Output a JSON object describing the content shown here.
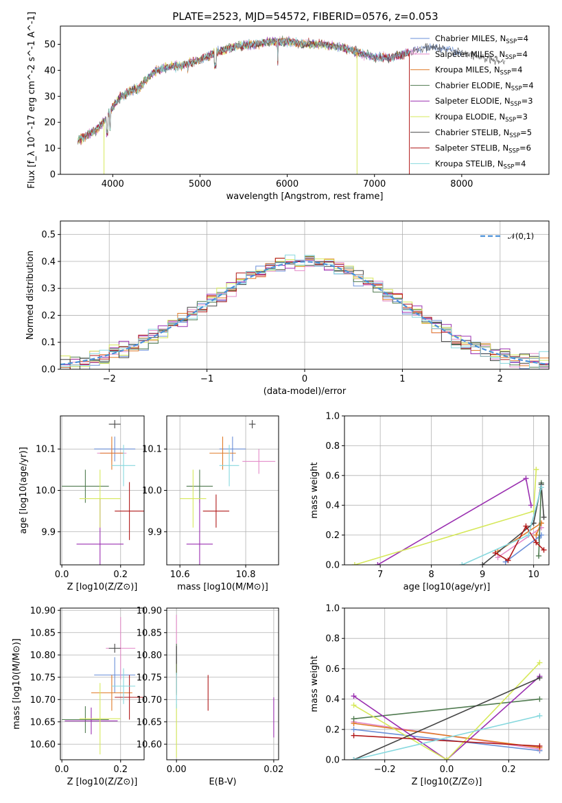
{
  "figure_title": "PLATE=2523, MJD=54572, FIBERID=0576, z=0.053",
  "colors": {
    "Chabrier MILES": "#6a8fd8",
    "Salpeter MILES": "#e38ac8",
    "Kroupa MILES": "#e07b28",
    "Chabrier ELODIE": "#4f7a4f",
    "Salpeter ELODIE": "#9a2fb0",
    "Kroupa ELODIE": "#d6e85a",
    "Chabrier STELIB": "#444444",
    "Salpeter STELIB": "#b01818",
    "Kroupa STELIB": "#86d8de"
  },
  "chart_data": [
    {
      "id": "spectrum",
      "type": "line",
      "title": "PLATE=2523, MJD=54572, FIBERID=0576, z=0.053",
      "xlabel": "wavelength [Angstrom, rest frame]",
      "ylabel": "Flux [f_λ 10^-17 erg cm^-2 s^-1 A^-1]",
      "xlim": [
        3400,
        9000
      ],
      "ylim": [
        0,
        57
      ],
      "xticks": [
        4000,
        5000,
        6000,
        7000,
        8000
      ],
      "yticks": [
        0,
        10,
        20,
        30,
        40,
        50
      ],
      "legend_position": "right",
      "legend": [
        {
          "name": "Chabrier MILES",
          "nssp": "4"
        },
        {
          "name": "Salpeter MILES",
          "nssp": "4"
        },
        {
          "name": "Kroupa MILES",
          "nssp": "4"
        },
        {
          "name": "Chabrier ELODIE",
          "nssp": "4"
        },
        {
          "name": "Salpeter ELODIE",
          "nssp": "3"
        },
        {
          "name": "Kroupa ELODIE",
          "nssp": "3"
        },
        {
          "name": "Chabrier STELIB",
          "nssp": "5"
        },
        {
          "name": "Salpeter STELIB",
          "nssp": "6"
        },
        {
          "name": "Kroupa STELIB",
          "nssp": "4"
        }
      ],
      "continuum": {
        "x": [
          3600,
          3700,
          3800,
          3900,
          4000,
          4100,
          4200,
          4300,
          4400,
          4500,
          4600,
          4800,
          5000,
          5200,
          5400,
          5600,
          5800,
          6000,
          6200,
          6400,
          6600,
          6800,
          7000,
          7200,
          7400,
          7600,
          7800,
          8000,
          8200,
          8400,
          8600,
          8800,
          9000
        ],
        "y": [
          13,
          15,
          17,
          20,
          26,
          30,
          32,
          33,
          37,
          40,
          41,
          42,
          44,
          47,
          49,
          50,
          51,
          51,
          50,
          50,
          49,
          47,
          45,
          45,
          47,
          49,
          48,
          47,
          45,
          44,
          43,
          42,
          41
        ]
      },
      "series": [
        {
          "name": "Chabrier MILES",
          "x": [
            3600,
            8000
          ]
        },
        {
          "name": "Salpeter MILES",
          "x": [
            3600,
            7500
          ]
        },
        {
          "name": "Kroupa MILES",
          "x": [
            3600,
            7400
          ]
        },
        {
          "name": "Chabrier ELODIE",
          "x": [
            3600,
            7400
          ]
        },
        {
          "name": "Salpeter ELODIE",
          "x": [
            3600,
            7400
          ]
        },
        {
          "name": "Kroupa ELODIE",
          "x": [
            3600,
            6800
          ]
        },
        {
          "name": "Chabrier STELIB",
          "x": [
            3600,
            8500
          ]
        },
        {
          "name": "Salpeter STELIB",
          "x": [
            3600,
            7400
          ]
        },
        {
          "name": "Kroupa STELIB",
          "x": [
            3600,
            7400
          ]
        }
      ]
    },
    {
      "id": "residuals",
      "type": "step",
      "xlabel": "(data-model)/error",
      "ylabel": "Normed distribution",
      "xlim": [
        -2.5,
        2.5
      ],
      "ylim": [
        0,
        0.55
      ],
      "xticks": [
        -2,
        -1,
        0,
        1,
        2
      ],
      "yticks": [
        0.0,
        0.1,
        0.2,
        0.3,
        0.4,
        0.5
      ],
      "legend": "𝒩(0,1)",
      "legend_position": "top-right",
      "bin_width": 0.1
    },
    {
      "id": "age_vs_Z",
      "type": "errorbar",
      "xlabel": "Z [log10(Z/Z⊙)]",
      "ylabel": "age [log10(age/yr)]",
      "xlim": [
        -0.005,
        0.28
      ],
      "ylim": [
        9.82,
        10.18
      ],
      "xticks": [
        0.0,
        0.2
      ],
      "yticks": [
        9.9,
        10.0,
        10.1
      ],
      "points": [
        {
          "name": "Chabrier MILES",
          "x": 0.18,
          "y": 10.1,
          "xerr": 0.07,
          "yerr": 0.03
        },
        {
          "name": "Salpeter MILES",
          "x": 0.17,
          "y": 10.09,
          "xerr": 0.05,
          "yerr": 0.02
        },
        {
          "name": "Kroupa MILES",
          "x": 0.17,
          "y": 10.09,
          "xerr": 0.04,
          "yerr": 0.04
        },
        {
          "name": "Chabrier ELODIE",
          "x": 0.08,
          "y": 10.01,
          "xerr": 0.08,
          "yerr": 0.04
        },
        {
          "name": "Salpeter ELODIE",
          "x": 0.13,
          "y": 9.87,
          "xerr": 0.08,
          "yerr": 0.11
        },
        {
          "name": "Kroupa ELODIE",
          "x": 0.13,
          "y": 9.98,
          "xerr": 0.07,
          "yerr": 0.07
        },
        {
          "name": "Chabrier STELIB",
          "x": 0.18,
          "y": 10.16,
          "xerr": 0.02,
          "yerr": 0.01
        },
        {
          "name": "Salpeter STELIB",
          "x": 0.23,
          "y": 9.95,
          "xerr": 0.05,
          "yerr": 0.07
        },
        {
          "name": "Kroupa STELIB",
          "x": 0.21,
          "y": 10.06,
          "xerr": 0.04,
          "yerr": 0.05
        }
      ]
    },
    {
      "id": "age_vs_mass",
      "type": "errorbar",
      "xlabel": "mass [log10(M/M⊙)]",
      "ylabel": "",
      "xlim": [
        10.56,
        10.9
      ],
      "ylim": [
        9.82,
        10.18
      ],
      "xticks": [
        10.6,
        10.8
      ],
      "yticks": [
        9.9,
        10.0,
        10.1
      ],
      "points": [
        {
          "name": "Chabrier MILES",
          "x": 10.76,
          "y": 10.1,
          "xerr": 0.04,
          "yerr": 0.03
        },
        {
          "name": "Salpeter MILES",
          "x": 10.84,
          "y": 10.07,
          "xerr": 0.05,
          "yerr": 0.03
        },
        {
          "name": "Kroupa MILES",
          "x": 10.73,
          "y": 10.09,
          "xerr": 0.04,
          "yerr": 0.04
        },
        {
          "name": "Chabrier ELODIE",
          "x": 10.66,
          "y": 10.01,
          "xerr": 0.04,
          "yerr": 0.04
        },
        {
          "name": "Salpeter ELODIE",
          "x": 10.66,
          "y": 9.87,
          "xerr": 0.04,
          "yerr": 0.11
        },
        {
          "name": "Kroupa ELODIE",
          "x": 10.64,
          "y": 9.98,
          "xerr": 0.04,
          "yerr": 0.07
        },
        {
          "name": "Chabrier STELIB",
          "x": 10.82,
          "y": 10.16,
          "xerr": 0.01,
          "yerr": 0.01
        },
        {
          "name": "Salpeter STELIB",
          "x": 10.71,
          "y": 9.95,
          "xerr": 0.04,
          "yerr": 0.04
        },
        {
          "name": "Kroupa STELIB",
          "x": 10.75,
          "y": 10.06,
          "xerr": 0.03,
          "yerr": 0.05
        }
      ]
    },
    {
      "id": "weight_vs_age",
      "type": "line",
      "xlabel": "age [log10(age/yr)]",
      "ylabel": "mass weight",
      "xlim": [
        6.3,
        10.3
      ],
      "ylim": [
        0,
        1.0
      ],
      "xticks": [
        7,
        8,
        9,
        10
      ],
      "yticks": [
        0.0,
        0.2,
        0.4,
        0.6,
        0.8,
        1.0
      ],
      "series": [
        {
          "name": "Chabrier MILES",
          "x": [
            9.45,
            10.15,
            10.1
          ],
          "y": [
            0.02,
            0.2,
            0.18
          ]
        },
        {
          "name": "Salpeter MILES",
          "x": [
            9.3,
            10.15
          ],
          "y": [
            0.05,
            0.25
          ]
        },
        {
          "name": "Kroupa MILES",
          "x": [
            9.3,
            10.15,
            10.05
          ],
          "y": [
            0.09,
            0.28,
            0.2
          ]
        },
        {
          "name": "Chabrier ELODIE",
          "x": [
            10.1,
            10.15
          ],
          "y": [
            0.06,
            0.55
          ]
        },
        {
          "name": "Salpeter ELODIE",
          "x": [
            6.95,
            9.85,
            9.95
          ],
          "y": [
            0.0,
            0.58,
            0.4
          ]
        },
        {
          "name": "Kroupa ELODIE",
          "x": [
            6.5,
            10.0,
            10.05
          ],
          "y": [
            0.0,
            0.36,
            0.64
          ]
        },
        {
          "name": "Chabrier STELIB",
          "x": [
            9.0,
            10.0,
            10.15,
            10.2
          ],
          "y": [
            0.0,
            0.28,
            0.54,
            0.32
          ]
        },
        {
          "name": "Salpeter STELIB",
          "x": [
            9.25,
            9.5,
            9.85,
            10.05,
            10.2
          ],
          "y": [
            0.08,
            0.03,
            0.26,
            0.15,
            0.1
          ]
        },
        {
          "name": "Kroupa STELIB",
          "x": [
            8.6,
            9.9,
            10.15
          ],
          "y": [
            0.0,
            0.2,
            0.52
          ]
        }
      ]
    },
    {
      "id": "mass_vs_Z",
      "type": "errorbar",
      "xlabel": "Z [log10(Z/Z⊙)]",
      "ylabel": "mass [log10(M/M⊙)]",
      "xlim": [
        -0.005,
        0.28
      ],
      "ylim": [
        10.565,
        10.905
      ],
      "xticks": [
        0.0,
        0.2
      ],
      "yticks": [
        10.6,
        10.65,
        10.7,
        10.75,
        10.8,
        10.85,
        10.9
      ],
      "points": [
        {
          "name": "Chabrier MILES",
          "x": 0.18,
          "y": 10.755,
          "xerr": 0.07,
          "yerr": 0.04
        },
        {
          "name": "Salpeter MILES",
          "x": 0.2,
          "y": 10.815,
          "xerr": 0.05,
          "yerr": 0.07
        },
        {
          "name": "Kroupa MILES",
          "x": 0.17,
          "y": 10.715,
          "xerr": 0.07,
          "yerr": 0.04
        },
        {
          "name": "Chabrier ELODIE",
          "x": 0.08,
          "y": 10.655,
          "xerr": 0.08,
          "yerr": 0.03
        },
        {
          "name": "Salpeter ELODIE",
          "x": 0.1,
          "y": 10.652,
          "xerr": 0.09,
          "yerr": 0.03
        },
        {
          "name": "Kroupa ELODIE",
          "x": 0.13,
          "y": 10.657,
          "xerr": 0.07,
          "yerr": 0.08
        },
        {
          "name": "Chabrier STELIB",
          "x": 0.18,
          "y": 10.815,
          "xerr": 0.02,
          "yerr": 0.01
        },
        {
          "name": "Salpeter STELIB",
          "x": 0.23,
          "y": 10.705,
          "xerr": 0.05,
          "yerr": 0.05
        },
        {
          "name": "Kroupa STELIB",
          "x": 0.21,
          "y": 10.73,
          "xerr": 0.04,
          "yerr": 0.04
        }
      ]
    },
    {
      "id": "mass_vs_ebv",
      "type": "errorbar",
      "xlabel": "E(B-V)",
      "ylabel": "",
      "xlim": [
        -0.002,
        0.021
      ],
      "ylim": [
        10.565,
        10.905
      ],
      "xticks": [
        0.0,
        0.02
      ],
      "yticks": [
        10.6,
        10.65,
        10.7,
        10.75,
        10.8,
        10.85,
        10.9
      ],
      "points": [
        {
          "name": "Chabrier MILES",
          "x": 0.0,
          "y": 10.755,
          "xerr": 0.0,
          "yerr": 0.04
        },
        {
          "name": "Salpeter MILES",
          "x": 0.0,
          "y": 10.815,
          "xerr": 0.0,
          "yerr": 0.075
        },
        {
          "name": "Kroupa MILES",
          "x": 0.0,
          "y": 10.75,
          "xerr": 0.0,
          "yerr": 0.04
        },
        {
          "name": "Chabrier ELODIE",
          "x": 0.0,
          "y": 10.79,
          "xerr": 0.0,
          "yerr": 0.035
        },
        {
          "name": "Salpeter ELODIE",
          "x": 0.02,
          "y": 10.66,
          "xerr": 0.0,
          "yerr": 0.045
        },
        {
          "name": "Kroupa ELODIE",
          "x": 0.0,
          "y": 10.63,
          "xerr": 0.0,
          "yerr": 0.06
        },
        {
          "name": "Chabrier STELIB",
          "x": 0.0,
          "y": 10.8,
          "xerr": 0.0,
          "yerr": 0.02
        },
        {
          "name": "Salpeter STELIB",
          "x": 0.0065,
          "y": 10.715,
          "xerr": 0.0,
          "yerr": 0.04
        },
        {
          "name": "Kroupa STELIB",
          "x": 0.0,
          "y": 10.72,
          "xerr": 0.0,
          "yerr": 0.04
        }
      ]
    },
    {
      "id": "weight_vs_Z",
      "type": "line",
      "xlabel": "Z [log10(Z/Z⊙)]",
      "ylabel": "mass weight",
      "xlim": [
        -0.33,
        0.33
      ],
      "ylim": [
        0,
        1.0
      ],
      "xticks": [
        -0.2,
        0.0,
        0.2
      ],
      "yticks": [
        0.0,
        0.2,
        0.4,
        0.6,
        0.8,
        1.0
      ],
      "series": [
        {
          "name": "Chabrier MILES",
          "x": [
            -0.3,
            0.3
          ],
          "y": [
            0.2,
            0.06
          ]
        },
        {
          "name": "Salpeter MILES",
          "x": [
            -0.3,
            0.3
          ],
          "y": [
            0.25,
            0.07
          ]
        },
        {
          "name": "Kroupa MILES",
          "x": [
            -0.3,
            0.3
          ],
          "y": [
            0.24,
            0.08
          ]
        },
        {
          "name": "Chabrier ELODIE",
          "x": [
            -0.3,
            0.3
          ],
          "y": [
            0.27,
            0.4
          ]
        },
        {
          "name": "Salpeter ELODIE",
          "x": [
            -0.3,
            0.0,
            0.3
          ],
          "y": [
            0.42,
            0.0,
            0.55
          ]
        },
        {
          "name": "Kroupa ELODIE",
          "x": [
            -0.3,
            0.0,
            0.3
          ],
          "y": [
            0.36,
            0.0,
            0.64
          ]
        },
        {
          "name": "Chabrier STELIB",
          "x": [
            -0.3,
            0.3
          ],
          "y": [
            0.0,
            0.54
          ]
        },
        {
          "name": "Salpeter STELIB",
          "x": [
            -0.3,
            0.3
          ],
          "y": [
            0.16,
            0.09
          ]
        },
        {
          "name": "Kroupa STELIB",
          "x": [
            -0.3,
            0.3
          ],
          "y": [
            0.0,
            0.29
          ]
        }
      ]
    }
  ]
}
